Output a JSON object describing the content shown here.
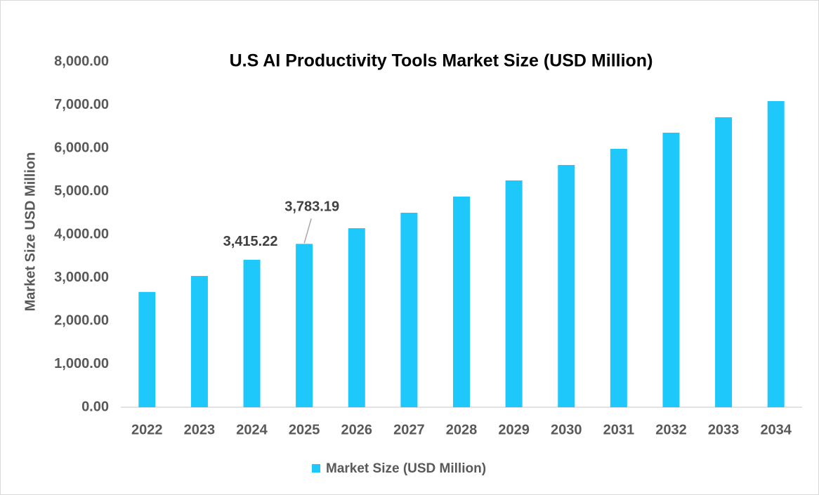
{
  "chart_data": {
    "type": "bar",
    "title": "U.S AI Productivity Tools Market Size (USD Million)",
    "y_label": "Market Size USD Million",
    "categories": [
      "2022",
      "2023",
      "2024",
      "2025",
      "2026",
      "2027",
      "2028",
      "2029",
      "2030",
      "2031",
      "2032",
      "2033",
      "2034"
    ],
    "series": [
      {
        "name": "Market Size (USD Million)",
        "color": "#1ec8fa",
        "values": [
          2670,
          3040,
          3415.22,
          3783.19,
          4146,
          4504,
          4878,
          5252,
          5610,
          5984,
          6358,
          6715,
          7089
        ],
        "value_labels": [
          null,
          null,
          "3,415.22",
          "3,783.19",
          null,
          null,
          null,
          null,
          null,
          null,
          null,
          null,
          null
        ]
      }
    ],
    "ylim": [
      0,
      8000
    ],
    "yticks": [
      {
        "value": 0,
        "label": "0.00"
      },
      {
        "value": 1000,
        "label": "1,000.00"
      },
      {
        "value": 2000,
        "label": "2,000.00"
      },
      {
        "value": 3000,
        "label": "3,000.00"
      },
      {
        "value": 4000,
        "label": "4,000.00"
      },
      {
        "value": 5000,
        "label": "5,000.00"
      },
      {
        "value": 6000,
        "label": "6,000.00"
      },
      {
        "value": 7000,
        "label": "7,000.00"
      },
      {
        "value": 8000,
        "label": "8,000.00"
      }
    ],
    "grid": false,
    "legend": "bottom"
  }
}
